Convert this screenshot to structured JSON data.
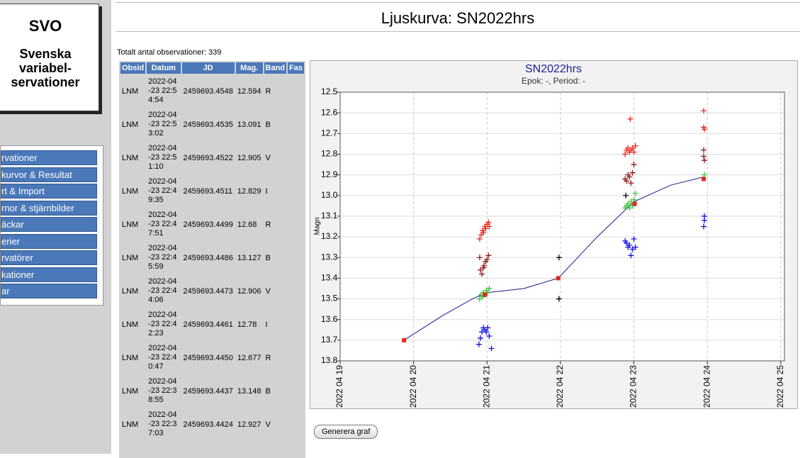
{
  "sidebar": {
    "logo": "SVO",
    "org": [
      "Svenska",
      "variabel-",
      "servationer"
    ],
    "menu": [
      "rvationer",
      "kurvor & Resultat",
      "rt & Import",
      "rnor & stjärnbilder",
      "äckar",
      "erier",
      "rvatörer",
      "kationer",
      "ar"
    ]
  },
  "header": {
    "title": "Ljuskurva: SN2022hrs"
  },
  "summary": "Totalt antal observationer: 339",
  "table": {
    "columns": [
      "Obsid",
      "Datum",
      "JD",
      "Mag.",
      "Band",
      "Fas"
    ],
    "rows": [
      [
        "LNM",
        "2022-04-23 22:54:54",
        "2459693.4548",
        "12.594",
        "R"
      ],
      [
        "LNM",
        "2022-04-23 22:53:02",
        "2459693.4535",
        "13.091",
        "B"
      ],
      [
        "LNM",
        "2022-04-23 22:51:10",
        "2459693.4522",
        "12.905",
        "V"
      ],
      [
        "LNM",
        "2022-04-23 22:49:35",
        "2459693.4511",
        "12.829",
        "I"
      ],
      [
        "LNM",
        "2022-04-23 22:47:51",
        "2459693.4499",
        "12.68",
        "R"
      ],
      [
        "LNM",
        "2022-04-23 22:45:59",
        "2459693.4486",
        "13.127",
        "B"
      ],
      [
        "LNM",
        "2022-04-23 22:44:06",
        "2459693.4473",
        "12.906",
        "V"
      ],
      [
        "LNM",
        "2022-04-23 22:42:23",
        "2459693.4461",
        "12.78",
        "I"
      ],
      [
        "LNM",
        "2022-04-23 22:40:47",
        "2459693.4450",
        "12.677",
        "R"
      ],
      [
        "LNM",
        "2022-04-23 22:38:55",
        "2459693.4437",
        "13.148",
        "B"
      ],
      [
        "LNM",
        "2022-04-23 22:37:03",
        "2459693.4424",
        "12.927",
        "V"
      ]
    ]
  },
  "chart_data": {
    "type": "scatter",
    "title": "SN2022hrs",
    "subtitle": "Epok: -, Period: -",
    "y_label": "Magn",
    "xlim": [
      2459688.5,
      2459694.55
    ],
    "ylim": [
      13.8,
      12.5
    ],
    "grid": true,
    "xticks": [
      {
        "value": 2459688.5,
        "label": "2022 04 19"
      },
      {
        "value": 2459689.5,
        "label": "2022 04 20"
      },
      {
        "value": 2459690.5,
        "label": "2022 04 21"
      },
      {
        "value": 2459691.5,
        "label": "2022 04 22"
      },
      {
        "value": 2459692.5,
        "label": "2022 04 23"
      },
      {
        "value": 2459693.5,
        "label": "2022 04 24"
      },
      {
        "value": 2459694.5,
        "label": "2022 04 25"
      }
    ],
    "yticks": [
      12.5,
      12.6,
      12.7,
      12.8,
      12.9,
      {
        "value": 13,
        "label": "13.0"
      },
      13.1,
      13.2,
      13.3,
      13.4,
      13.5,
      13.6,
      13.7,
      13.8
    ],
    "series": [
      {
        "color": "#1a1a8c",
        "marker": "line",
        "x": [
          2459689.37,
          2459689.9,
          2459690.3,
          2459690.5,
          2459691.0,
          2459691.47,
          2459692.0,
          2459692.5,
          2459693.0,
          2459693.45
        ],
        "values": [
          13.7,
          13.58,
          13.5,
          13.47,
          13.45,
          13.4,
          13.2,
          13.03,
          12.95,
          12.91
        ]
      },
      {
        "color": "#e8281e",
        "marker": "plus",
        "x": [
          2459690.4,
          2459690.42,
          2459690.44,
          2459690.45,
          2459690.47,
          2459690.48,
          2459690.5,
          2459690.52,
          2459690.53,
          2459692.38,
          2459692.4,
          2459692.42,
          2459692.44,
          2459692.46,
          2459692.48,
          2459692.5,
          2459692.52,
          2459692.45,
          2459693.45,
          2459693.45,
          2459693.46
        ],
        "values": [
          13.21,
          13.19,
          13.17,
          13.18,
          13.15,
          13.16,
          13.14,
          13.13,
          13.15,
          12.8,
          12.78,
          12.77,
          12.79,
          12.78,
          12.77,
          12.79,
          12.76,
          12.63,
          12.59,
          12.67,
          12.68
        ]
      },
      {
        "color": "#8b1a1a",
        "marker": "plus",
        "x": [
          2459690.4,
          2459690.41,
          2459690.43,
          2459690.45,
          2459690.46,
          2459690.48,
          2459690.5,
          2459690.52,
          2459692.38,
          2459692.4,
          2459692.42,
          2459692.44,
          2459692.46,
          2459692.48,
          2459692.5,
          2459693.45,
          2459693.45,
          2459693.46
        ],
        "values": [
          13.3,
          13.36,
          13.38,
          13.35,
          13.34,
          13.32,
          13.31,
          13.29,
          12.92,
          12.93,
          12.9,
          12.91,
          12.94,
          12.89,
          12.85,
          12.78,
          12.81,
          12.83
        ]
      },
      {
        "color": "#3cc03c",
        "marker": "plus",
        "x": [
          2459690.4,
          2459690.42,
          2459690.44,
          2459690.45,
          2459690.47,
          2459690.49,
          2459690.51,
          2459690.53,
          2459692.38,
          2459692.4,
          2459692.42,
          2459692.44,
          2459692.46,
          2459692.48,
          2459692.5,
          2459692.52,
          2459693.46
        ],
        "values": [
          13.5,
          13.48,
          13.49,
          13.47,
          13.48,
          13.46,
          13.47,
          13.45,
          13.06,
          13.05,
          13.04,
          13.06,
          13.03,
          13.05,
          13.02,
          12.99,
          12.9
        ]
      },
      {
        "color": "#1010dd",
        "marker": "plus",
        "x": [
          2459690.39,
          2459690.41,
          2459690.43,
          2459690.45,
          2459690.47,
          2459690.49,
          2459690.51,
          2459690.53,
          2459690.56,
          2459692.38,
          2459692.4,
          2459692.42,
          2459692.44,
          2459692.46,
          2459692.48,
          2459692.5,
          2459692.52,
          2459693.45,
          2459693.46,
          2459693.46
        ],
        "values": [
          13.72,
          13.69,
          13.66,
          13.64,
          13.65,
          13.66,
          13.64,
          13.68,
          13.74,
          13.22,
          13.23,
          13.25,
          13.24,
          13.29,
          13.26,
          13.21,
          13.25,
          13.15,
          13.12,
          13.1
        ]
      },
      {
        "color": "#000000",
        "marker": "plus",
        "x": [
          2459691.48,
          2459691.48,
          2459692.39
        ],
        "values": [
          13.3,
          13.5,
          13.0
        ]
      },
      {
        "color": "#e8281e",
        "marker": "square",
        "x": [
          2459689.37,
          2459690.47,
          2459691.47,
          2459692.51,
          2459693.45
        ],
        "values": [
          13.7,
          13.48,
          13.4,
          13.04,
          12.92
        ]
      }
    ]
  },
  "button": "Generera graf"
}
